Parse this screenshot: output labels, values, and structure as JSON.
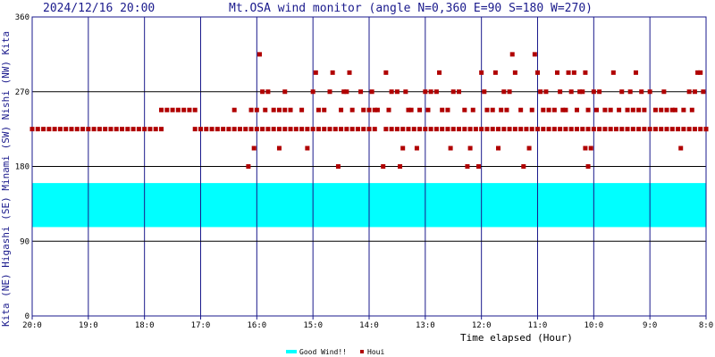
{
  "header": {
    "timestamp": "2024/12/16 20:00",
    "title": "Mt.OSA wind monitor (angle N=0,360 E=90 S=180 W=270)"
  },
  "side_label": "Kita (NE) Higashi (SE) Minami (SW) Nishi (NW) Kita",
  "colors": {
    "axis": "#1a1a8c",
    "good_wind": "#00ffff",
    "points": "#b00000",
    "grid_h": "#000000"
  },
  "chart_data": {
    "type": "scatter",
    "xlabel": "Time elapsed (Hour)",
    "ylim": [
      0,
      360
    ],
    "xlim": [
      0,
      12
    ],
    "x_tick_labels": [
      "20:0",
      "19:0",
      "18:0",
      "17:0",
      "16:0",
      "15:0",
      "14:0",
      "13:0",
      "12:0",
      "11:0",
      "10:0",
      "9:0",
      "8:0"
    ],
    "y_ticks": [
      0,
      90,
      180,
      270,
      360
    ],
    "grid": true,
    "legend_position": "bottom-center",
    "bands": [
      {
        "name": "Good Wind!!",
        "from": 107,
        "to": 160
      }
    ],
    "series": [
      {
        "name": "Houi",
        "points": [
          [
            0.0,
            225
          ],
          [
            0.1,
            225
          ],
          [
            0.2,
            225
          ],
          [
            0.3,
            225
          ],
          [
            0.4,
            225
          ],
          [
            0.5,
            225
          ],
          [
            0.6,
            225
          ],
          [
            0.7,
            225
          ],
          [
            0.8,
            225
          ],
          [
            0.9,
            225
          ],
          [
            1.0,
            225
          ],
          [
            1.1,
            225
          ],
          [
            1.2,
            225
          ],
          [
            1.3,
            225
          ],
          [
            1.4,
            225
          ],
          [
            1.5,
            225
          ],
          [
            1.6,
            225
          ],
          [
            1.7,
            225
          ],
          [
            1.8,
            225
          ],
          [
            1.9,
            225
          ],
          [
            2.0,
            225
          ],
          [
            2.1,
            225
          ],
          [
            2.2,
            225
          ],
          [
            2.3,
            225
          ],
          [
            2.3,
            248
          ],
          [
            2.4,
            248
          ],
          [
            2.5,
            248
          ],
          [
            2.6,
            248
          ],
          [
            2.7,
            248
          ],
          [
            2.8,
            248
          ],
          [
            2.9,
            248
          ],
          [
            2.9,
            225
          ],
          [
            3.0,
            225
          ],
          [
            3.1,
            225
          ],
          [
            3.2,
            225
          ],
          [
            3.3,
            225
          ],
          [
            3.4,
            225
          ],
          [
            3.5,
            225
          ],
          [
            3.6,
            225
          ],
          [
            3.7,
            225
          ],
          [
            3.8,
            225
          ],
          [
            3.9,
            225
          ],
          [
            3.6,
            248
          ],
          [
            3.85,
            180
          ],
          [
            3.9,
            248
          ],
          [
            3.95,
            202
          ],
          [
            4.0,
            248
          ],
          [
            4.05,
            315
          ],
          [
            4.1,
            270
          ],
          [
            4.2,
            270
          ],
          [
            4.15,
            248
          ],
          [
            4.3,
            248
          ],
          [
            4.4,
            248
          ],
          [
            4.5,
            248
          ],
          [
            4.0,
            225
          ],
          [
            4.1,
            225
          ],
          [
            4.2,
            225
          ],
          [
            4.3,
            225
          ],
          [
            4.4,
            225
          ],
          [
            4.5,
            225
          ],
          [
            4.6,
            225
          ],
          [
            4.7,
            225
          ],
          [
            4.8,
            225
          ],
          [
            4.9,
            225
          ],
          [
            5.0,
            225
          ],
          [
            5.1,
            225
          ],
          [
            5.2,
            225
          ],
          [
            5.3,
            225
          ],
          [
            5.4,
            225
          ],
          [
            5.5,
            225
          ],
          [
            5.6,
            225
          ],
          [
            5.7,
            225
          ],
          [
            5.8,
            225
          ],
          [
            5.9,
            225
          ],
          [
            6.0,
            225
          ],
          [
            6.1,
            225
          ],
          [
            4.4,
            202
          ],
          [
            4.5,
            270
          ],
          [
            4.6,
            248
          ],
          [
            4.8,
            248
          ],
          [
            4.9,
            202
          ],
          [
            5.0,
            270
          ],
          [
            5.05,
            293
          ],
          [
            5.1,
            248
          ],
          [
            5.2,
            248
          ],
          [
            5.3,
            270
          ],
          [
            5.35,
            293
          ],
          [
            5.45,
            180
          ],
          [
            5.5,
            248
          ],
          [
            5.55,
            270
          ],
          [
            5.6,
            270
          ],
          [
            5.65,
            293
          ],
          [
            5.7,
            248
          ],
          [
            5.85,
            270
          ],
          [
            5.9,
            248
          ],
          [
            6.0,
            248
          ],
          [
            6.05,
            270
          ],
          [
            6.1,
            248
          ],
          [
            6.15,
            248
          ],
          [
            6.3,
            225
          ],
          [
            6.4,
            225
          ],
          [
            6.5,
            225
          ],
          [
            6.6,
            225
          ],
          [
            6.7,
            225
          ],
          [
            6.8,
            225
          ],
          [
            6.9,
            225
          ],
          [
            7.0,
            225
          ],
          [
            7.1,
            225
          ],
          [
            7.2,
            225
          ],
          [
            7.3,
            225
          ],
          [
            7.4,
            225
          ],
          [
            7.5,
            225
          ],
          [
            7.6,
            225
          ],
          [
            7.7,
            225
          ],
          [
            7.8,
            225
          ],
          [
            7.9,
            225
          ],
          [
            6.25,
            180
          ],
          [
            6.3,
            293
          ],
          [
            6.35,
            248
          ],
          [
            6.4,
            270
          ],
          [
            6.5,
            270
          ],
          [
            6.55,
            180
          ],
          [
            6.6,
            202
          ],
          [
            6.65,
            270
          ],
          [
            6.7,
            248
          ],
          [
            6.75,
            248
          ],
          [
            6.85,
            202
          ],
          [
            6.9,
            248
          ],
          [
            7.0,
            270
          ],
          [
            7.05,
            248
          ],
          [
            7.1,
            270
          ],
          [
            7.2,
            270
          ],
          [
            7.25,
            293
          ],
          [
            7.3,
            248
          ],
          [
            7.4,
            248
          ],
          [
            7.45,
            202
          ],
          [
            7.5,
            270
          ],
          [
            7.6,
            270
          ],
          [
            7.7,
            248
          ],
          [
            7.75,
            180
          ],
          [
            7.8,
            202
          ],
          [
            7.85,
            248
          ],
          [
            7.95,
            180
          ],
          [
            8.0,
            225
          ],
          [
            8.1,
            225
          ],
          [
            8.2,
            225
          ],
          [
            8.3,
            225
          ],
          [
            8.4,
            225
          ],
          [
            8.5,
            225
          ],
          [
            8.6,
            225
          ],
          [
            8.7,
            225
          ],
          [
            8.8,
            225
          ],
          [
            8.9,
            225
          ],
          [
            9.0,
            225
          ],
          [
            9.1,
            225
          ],
          [
            9.2,
            225
          ],
          [
            9.3,
            225
          ],
          [
            9.4,
            225
          ],
          [
            9.5,
            225
          ],
          [
            9.6,
            225
          ],
          [
            9.7,
            225
          ],
          [
            9.8,
            225
          ],
          [
            9.9,
            225
          ],
          [
            10.0,
            225
          ],
          [
            10.1,
            225
          ],
          [
            8.0,
            293
          ],
          [
            8.05,
            270
          ],
          [
            8.1,
            248
          ],
          [
            8.2,
            248
          ],
          [
            8.25,
            293
          ],
          [
            8.3,
            202
          ],
          [
            8.35,
            248
          ],
          [
            8.4,
            270
          ],
          [
            8.45,
            248
          ],
          [
            8.5,
            270
          ],
          [
            8.55,
            315
          ],
          [
            8.6,
            293
          ],
          [
            8.7,
            248
          ],
          [
            8.75,
            180
          ],
          [
            8.85,
            202
          ],
          [
            8.9,
            248
          ],
          [
            8.95,
            315
          ],
          [
            9.0,
            293
          ],
          [
            9.05,
            270
          ],
          [
            9.1,
            248
          ],
          [
            9.15,
            270
          ],
          [
            9.2,
            248
          ],
          [
            9.3,
            248
          ],
          [
            9.35,
            293
          ],
          [
            9.4,
            270
          ],
          [
            9.45,
            248
          ],
          [
            9.5,
            248
          ],
          [
            9.55,
            293
          ],
          [
            9.6,
            270
          ],
          [
            9.65,
            293
          ],
          [
            9.7,
            248
          ],
          [
            9.75,
            270
          ],
          [
            9.8,
            270
          ],
          [
            9.85,
            293
          ],
          [
            9.9,
            248
          ],
          [
            9.95,
            202
          ],
          [
            10.0,
            270
          ],
          [
            10.05,
            248
          ],
          [
            10.1,
            270
          ],
          [
            10.2,
            225
          ],
          [
            10.3,
            225
          ],
          [
            10.4,
            225
          ],
          [
            10.5,
            225
          ],
          [
            10.6,
            225
          ],
          [
            10.7,
            225
          ],
          [
            10.8,
            225
          ],
          [
            10.9,
            225
          ],
          [
            11.0,
            225
          ],
          [
            11.1,
            225
          ],
          [
            11.2,
            225
          ],
          [
            11.3,
            225
          ],
          [
            11.4,
            225
          ],
          [
            11.5,
            225
          ],
          [
            11.6,
            225
          ],
          [
            11.7,
            225
          ],
          [
            11.8,
            225
          ],
          [
            11.9,
            225
          ],
          [
            12.0,
            225
          ],
          [
            9.85,
            202
          ],
          [
            9.9,
            180
          ],
          [
            10.2,
            248
          ],
          [
            10.3,
            248
          ],
          [
            10.35,
            293
          ],
          [
            10.45,
            248
          ],
          [
            10.5,
            270
          ],
          [
            10.6,
            248
          ],
          [
            10.65,
            270
          ],
          [
            10.7,
            248
          ],
          [
            10.75,
            293
          ],
          [
            10.8,
            248
          ],
          [
            10.85,
            270
          ],
          [
            10.9,
            248
          ],
          [
            11.0,
            270
          ],
          [
            11.1,
            248
          ],
          [
            11.2,
            248
          ],
          [
            11.25,
            270
          ],
          [
            11.3,
            248
          ],
          [
            11.4,
            248
          ],
          [
            11.45,
            248
          ],
          [
            11.55,
            202
          ],
          [
            11.6,
            248
          ],
          [
            11.7,
            270
          ],
          [
            11.75,
            248
          ],
          [
            11.8,
            270
          ],
          [
            11.85,
            293
          ],
          [
            11.9,
            293
          ],
          [
            11.95,
            270
          ],
          [
            12.0,
            225
          ]
        ]
      }
    ]
  },
  "legend": {
    "band_label": "Good Wind!!",
    "point_label": "Houi"
  }
}
